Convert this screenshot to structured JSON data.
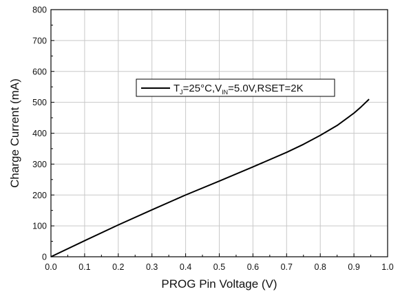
{
  "chart_data": {
    "type": "line",
    "xlabel": "PROG Pin Voltage (V)",
    "ylabel": "Charge Current (mA)",
    "xlim": [
      0.0,
      1.0
    ],
    "ylim": [
      0,
      800
    ],
    "x_ticks": [
      "0.0",
      "0.1",
      "0.2",
      "0.3",
      "0.4",
      "0.5",
      "0.6",
      "0.7",
      "0.8",
      "0.9",
      "1.0"
    ],
    "y_ticks": [
      "0",
      "100",
      "200",
      "300",
      "400",
      "500",
      "600",
      "700",
      "800"
    ],
    "grid": true,
    "legend_position": "top-center",
    "legend": {
      "t": "T",
      "t_sub": "J",
      "t_rest": "=25°C,V",
      "v_sub": "IN",
      "v_rest": "=5.0V,RSET=2K"
    },
    "series": [
      {
        "name": "TJ=25°C,VIN=5.0V,RSET=2K",
        "color": "#000000",
        "x": [
          0.0,
          0.1,
          0.2,
          0.3,
          0.4,
          0.5,
          0.6,
          0.7,
          0.75,
          0.8,
          0.85,
          0.9,
          0.92,
          0.945
        ],
        "y": [
          0,
          52,
          103,
          152,
          200,
          245,
          291,
          338,
          364,
          393,
          425,
          465,
          484,
          510
        ]
      }
    ]
  }
}
